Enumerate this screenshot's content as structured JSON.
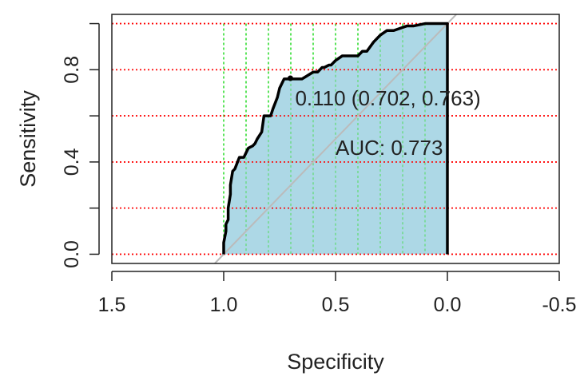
{
  "chart_data": {
    "type": "line",
    "title": "",
    "xlabel": "Specificity",
    "ylabel": "Sensitivity",
    "xlim": [
      1.5,
      -0.5
    ],
    "ylim": [
      0,
      1
    ],
    "x_ticks": [
      "1.5",
      "1.0",
      "0.5",
      "0.0",
      "-0.5"
    ],
    "x_tick_values": [
      1.5,
      1.0,
      0.5,
      0.0,
      -0.5
    ],
    "y_ticks": [
      "0.0",
      "0.4",
      "0.8"
    ],
    "y_tick_values": [
      0.0,
      0.4,
      0.8
    ],
    "grid": true,
    "grid_colors": {
      "horizontal": "#ff0000",
      "vertical": "#33dd33"
    },
    "fill_color": "#add8e6",
    "curve_color": "#000000",
    "diagonal_color": "#bbbbbb",
    "series": [
      {
        "x": [
          1.0,
          1.0,
          0.99,
          0.99,
          0.98,
          0.98,
          0.97,
          0.97,
          0.96,
          0.95,
          0.93,
          0.91,
          0.89,
          0.87,
          0.86,
          0.85,
          0.83,
          0.82,
          0.79,
          0.78,
          0.76,
          0.75,
          0.73,
          0.72,
          0.7,
          0.65,
          0.6,
          0.58,
          0.56,
          0.55,
          0.53,
          0.52,
          0.5,
          0.47,
          0.45,
          0.4,
          0.38,
          0.36,
          0.33,
          0.3,
          0.27,
          0.24,
          0.18,
          0.15,
          0.1,
          0.05,
          0.0
        ],
        "y": [
          0.0,
          0.05,
          0.1,
          0.13,
          0.15,
          0.2,
          0.26,
          0.3,
          0.36,
          0.37,
          0.42,
          0.42,
          0.46,
          0.47,
          0.48,
          0.5,
          0.53,
          0.6,
          0.6,
          0.63,
          0.68,
          0.72,
          0.76,
          0.76,
          0.76,
          0.76,
          0.79,
          0.79,
          0.81,
          0.81,
          0.82,
          0.82,
          0.84,
          0.86,
          0.86,
          0.86,
          0.88,
          0.88,
          0.92,
          0.95,
          0.97,
          0.97,
          0.99,
          0.99,
          1.0,
          1.0,
          1.0
        ]
      }
    ],
    "annotations": [
      {
        "text": "0.110 (0.702, 0.763)",
        "x": 0.702,
        "y": 0.763
      },
      {
        "text": "AUC: 0.773",
        "x": 0.5,
        "y": 0.43
      }
    ]
  }
}
